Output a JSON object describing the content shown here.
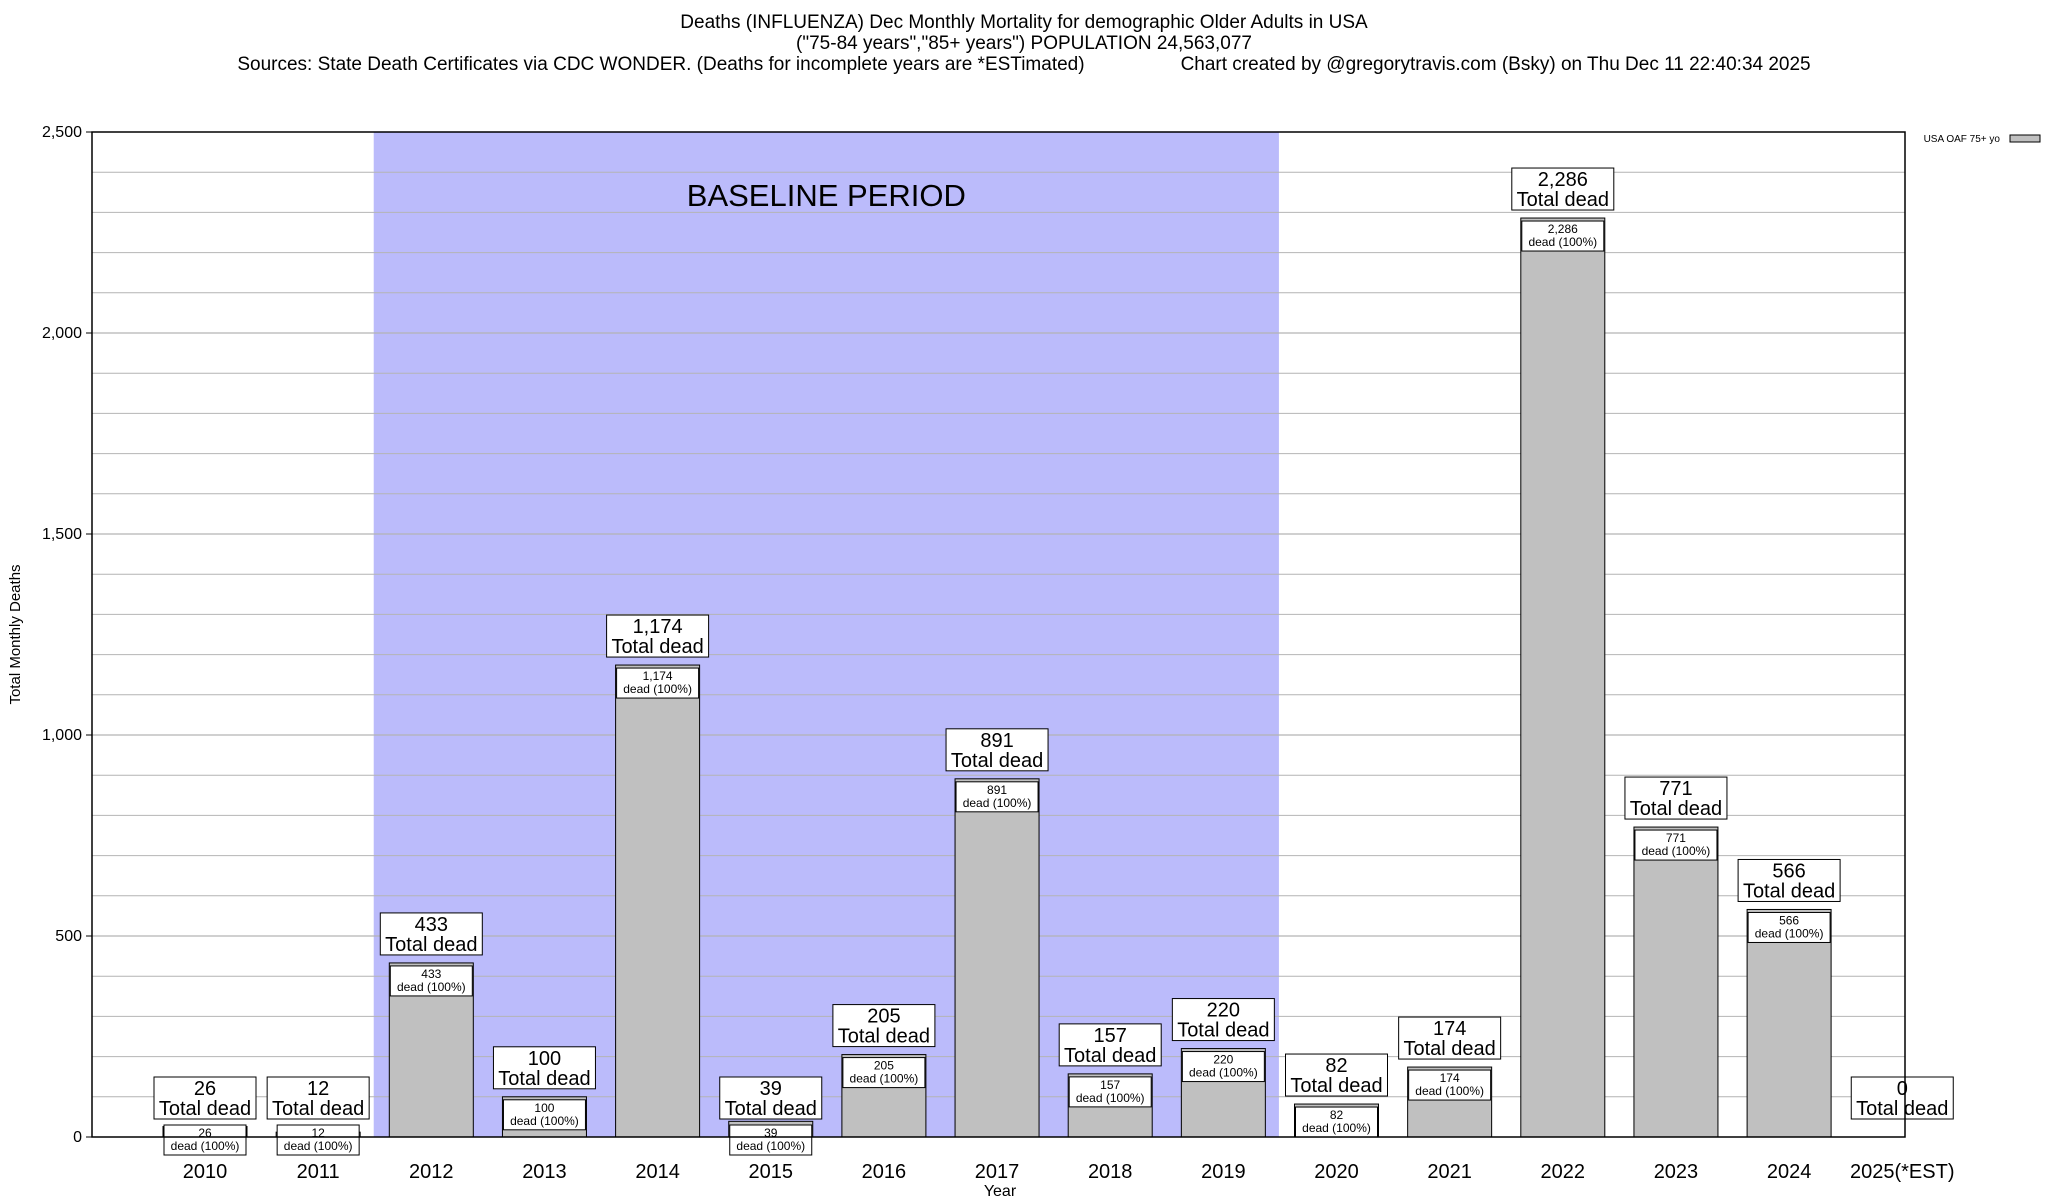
{
  "chart_data": {
    "type": "bar",
    "title": "Deaths (INFLUENZA) Dec Monthly Mortality for demographic Older Adults in USA",
    "subtitle": "(\"75-84 years\",\"85+ years\") POPULATION 24,563,077",
    "sources": "Sources: State Death Certificates via CDC WONDER. (Deaths for incomplete years are *ESTimated)",
    "credit": "Chart created by @gregorytravis.com (Bsky) on Thu Dec 11 22:40:34 2025",
    "xlabel": "Year",
    "ylabel": "Total Monthly Deaths",
    "ylim": [
      0,
      2500
    ],
    "yticks": [
      0,
      500,
      1000,
      1500,
      2000,
      2500
    ],
    "ytick_labels": [
      "0",
      "500",
      "1,000",
      "1,500",
      "2,000",
      "2,500"
    ],
    "grid": true,
    "legend": {
      "position": "top-right",
      "entries": [
        "USA OAF 75+ yo"
      ]
    },
    "baseline_annotation": {
      "label": "BASELINE PERIOD",
      "from_category": "2012",
      "to_category": "2019"
    },
    "categories": [
      "2010",
      "2011",
      "2012",
      "2013",
      "2014",
      "2015",
      "2016",
      "2017",
      "2018",
      "2019",
      "2020",
      "2021",
      "2022",
      "2023",
      "2024",
      "2025(*EST)"
    ],
    "values": [
      26,
      12,
      433,
      100,
      1174,
      39,
      205,
      891,
      157,
      220,
      82,
      174,
      2286,
      771,
      566,
      0
    ],
    "value_labels": [
      "26",
      "12",
      "433",
      "100",
      "1,174",
      "39",
      "205",
      "891",
      "157",
      "220",
      "82",
      "174",
      "2,286",
      "771",
      "566",
      "0"
    ],
    "total_label": "Total dead",
    "inner_label": "dead (100%)"
  },
  "colors": {
    "bar_fill": "#c0c0c0",
    "baseline_band": "#bbbbfb",
    "grid": "#b4b4b4"
  }
}
